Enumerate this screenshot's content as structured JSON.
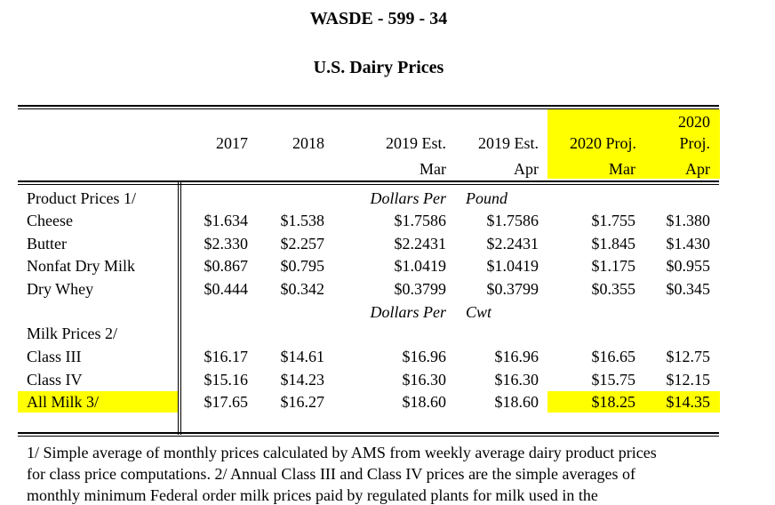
{
  "doc_ref": "WASDE - 599 - 34",
  "table_title": "U.S. Dairy Prices",
  "header": {
    "col_2017": "2017",
    "col_2018": "2018",
    "col_2019_mar_top": "2019 Est.",
    "col_2019_mar_bottom": "Mar",
    "col_2019_apr_top": "2019 Est.",
    "col_2019_apr_bottom": "Apr",
    "col_2020_mar_top": "2020 Proj.",
    "col_2020_mar_bottom": "Mar",
    "col_2020_apr_line1": "2020",
    "col_2020_apr_line2": "Proj.",
    "col_2020_apr_bottom": "Apr"
  },
  "units": {
    "product_left": "Dollars Per",
    "product_right": "Pound",
    "milk_left": "Dollars Per",
    "milk_right": "Cwt"
  },
  "product_section_label": "Product Prices 1/",
  "milk_section_label": "Milk Prices 2/",
  "product_rows": [
    {
      "label": "Cheese",
      "values": [
        "$1.634",
        "$1.538",
        "$1.7586",
        "$1.7586",
        "$1.755",
        "$1.380"
      ]
    },
    {
      "label": "Butter",
      "values": [
        "$2.330",
        "$2.257",
        "$2.2431",
        "$2.2431",
        "$1.845",
        "$1.430"
      ]
    },
    {
      "label": "Nonfat Dry Milk",
      "values": [
        "$0.867",
        "$0.795",
        "$1.0419",
        "$1.0419",
        "$1.175",
        "$0.955"
      ]
    },
    {
      "label": "Dry Whey",
      "values": [
        "$0.444",
        "$0.342",
        "$0.3799",
        "$0.3799",
        "$0.355",
        "$0.345"
      ]
    }
  ],
  "milk_rows": [
    {
      "label": "Class III",
      "values": [
        "$16.17",
        "$14.61",
        "$16.96",
        "$16.96",
        "$16.65",
        "$12.75"
      ]
    },
    {
      "label": "Class IV",
      "values": [
        "$15.16",
        "$14.23",
        "$16.30",
        "$16.30",
        "$15.75",
        "$12.15"
      ]
    },
    {
      "label": "All Milk  3/",
      "values": [
        "$17.65",
        "$16.27",
        "$18.60",
        "$18.60",
        "$18.25",
        "$14.35"
      ]
    }
  ],
  "footnote_lines": [
    "1/ Simple average of monthly prices calculated by AMS from weekly average dairy product prices",
    "for class price computations. 2/ Annual Class III and Class IV prices are the simple averages of",
    "monthly minimum Federal order milk prices paid by regulated plants for milk used in the"
  ],
  "colors": {
    "highlight": "#ffff00"
  }
}
